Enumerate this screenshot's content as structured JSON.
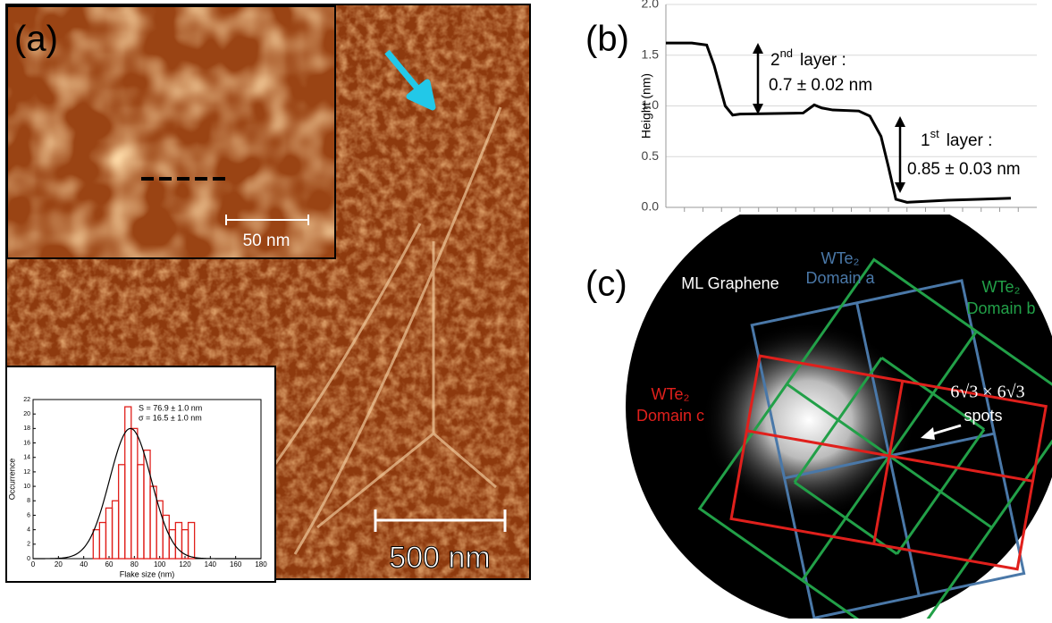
{
  "panels": {
    "a": "(a)",
    "b": "(b)",
    "c": "(c)"
  },
  "stm": {
    "inset_scale": "50 nm",
    "scale": "500 nm"
  },
  "leed": {
    "graphene": "ML Graphene",
    "domains": [
      {
        "name": "WTe₂",
        "label": "Domain a",
        "color": "#4a78a8"
      },
      {
        "name": "WTe₂",
        "label": "Domain b",
        "color": "#22a048"
      },
      {
        "name": "WTe₂",
        "label": "Domain c",
        "color": "#e0201c"
      }
    ],
    "spots_formula": "6√3 × 6√3",
    "spots": "spots"
  },
  "chart_data": [
    {
      "type": "line",
      "y_label": "Height (nm)",
      "x": [
        0,
        7,
        11,
        13,
        16,
        18,
        20,
        37,
        40,
        42,
        45,
        52,
        55,
        58,
        60,
        62,
        65,
        76,
        85,
        93
      ],
      "series": [
        {
          "color": "#000000",
          "values": [
            1.62,
            1.62,
            1.6,
            1.4,
            1.0,
            0.91,
            0.92,
            0.93,
            1.01,
            0.98,
            0.96,
            0.95,
            0.9,
            0.7,
            0.4,
            0.08,
            0.05,
            0.07,
            0.08,
            0.09
          ]
        }
      ],
      "xlim": [
        0,
        100
      ],
      "ylim": [
        0,
        2
      ],
      "yticks": [
        {
          "value": 0,
          "label": "0.0"
        },
        0.5,
        {
          "value": 1,
          "label": "1.0"
        },
        1.5,
        {
          "value": 2,
          "label": "2.0"
        }
      ],
      "annotations": [
        {
          "ordinal": "2",
          "suffix": "nd",
          "text": "layer :",
          "value": "0.7 ± 0.02 nm"
        },
        {
          "ordinal": "1",
          "suffix": "st",
          "text": "layer :",
          "value": "0.85 ± 0.03 nm"
        }
      ]
    },
    {
      "type": "histogram",
      "x_label": "Flake size (nm)",
      "y_label": "Occurrence",
      "bins": [
        47.5,
        52.5,
        57.5,
        62.5,
        67.5,
        72.5,
        77.5,
        82.5,
        87.5,
        92.5,
        97.5,
        102.5,
        107.5,
        112.5,
        117.5,
        122.5,
        127.5
      ],
      "values": [
        4,
        5,
        7,
        8,
        13,
        21,
        18,
        13,
        15,
        10,
        8,
        6,
        4,
        5,
        4,
        5
      ],
      "color": "#e0201c",
      "xlim": [
        0,
        180
      ],
      "xticks": [
        0,
        20,
        40,
        60,
        80,
        100,
        120,
        140,
        160,
        180
      ],
      "ylim": [
        0,
        22
      ],
      "yticks": [
        0,
        2,
        4,
        6,
        8,
        10,
        12,
        14,
        16,
        18,
        20,
        22
      ],
      "fit": {
        "mean": 76.9,
        "sigma": 16.5,
        "peak": 18
      },
      "fit_labels": [
        "S = 76.9 ± 1.0 nm",
        "σ = 16.5 ± 1.0 nm"
      ]
    }
  ]
}
